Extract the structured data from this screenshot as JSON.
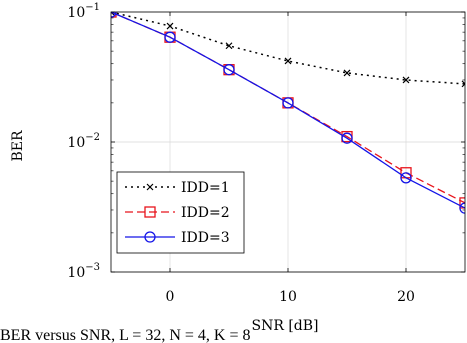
{
  "chart_data": {
    "type": "line",
    "xlabel": "SNR [dB]",
    "ylabel": "BER",
    "xlim": [
      -5,
      25
    ],
    "ylim": [
      0.001,
      0.1
    ],
    "yscale": "log",
    "grid": true,
    "legend_position": "bottom-left",
    "x_ticks": [
      0,
      10,
      20
    ],
    "y_ticks": [
      {
        "value": 0.1,
        "base": "10",
        "exp": "−1"
      },
      {
        "value": 0.01,
        "base": "10",
        "exp": "−2"
      },
      {
        "value": 0.001,
        "base": "10",
        "exp": "−3"
      }
    ],
    "series": [
      {
        "name": "IDD=1",
        "color": "#000000",
        "marker": "x",
        "dash": "2,4",
        "x": [
          -5,
          0,
          5,
          10,
          15,
          20,
          25
        ],
        "y": [
          0.1,
          0.078,
          0.055,
          0.042,
          0.034,
          0.03,
          0.028
        ]
      },
      {
        "name": "IDD=2",
        "color": "#e8141c",
        "marker": "square",
        "dash": "8,4",
        "x": [
          -5,
          0,
          5,
          10,
          15,
          20,
          25
        ],
        "y": [
          0.1,
          0.064,
          0.036,
          0.02,
          0.011,
          0.0058,
          0.0034
        ]
      },
      {
        "name": "IDD=3",
        "color": "#1414e8",
        "marker": "circle",
        "dash": "",
        "x": [
          -5,
          0,
          5,
          10,
          15,
          20,
          25
        ],
        "y": [
          0.1,
          0.064,
          0.036,
          0.02,
          0.0107,
          0.0053,
          0.0031
        ]
      }
    ]
  },
  "caption_text": "BER versus SNR, L = 32, N = 4, K = 8"
}
